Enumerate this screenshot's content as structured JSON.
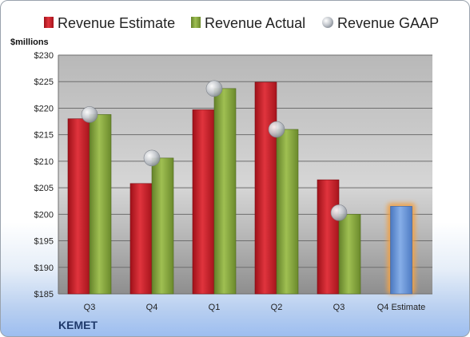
{
  "chart_data": {
    "type": "bar",
    "categories": [
      "Q3",
      "Q4",
      "Q1",
      "Q2",
      "Q3",
      "Q4 Estimate"
    ],
    "series": [
      {
        "name": "Revenue Estimate",
        "values": [
          218.0,
          205.8,
          219.7,
          224.9,
          206.5,
          null
        ]
      },
      {
        "name": "Revenue Actual",
        "values": [
          218.8,
          210.6,
          223.7,
          216.0,
          200.0,
          null
        ]
      },
      {
        "name": "Revenue GAAP",
        "values": [
          218.8,
          210.6,
          223.7,
          216.0,
          200.3,
          null
        ]
      }
    ],
    "forecast": {
      "category": "Q4 Estimate",
      "value": 201.5
    },
    "ylabel": "$millions",
    "ylim": [
      185,
      230
    ],
    "yticks": [
      185,
      190,
      195,
      200,
      205,
      210,
      215,
      220,
      225,
      230
    ],
    "ytick_labels": [
      "$185",
      "$190",
      "$195",
      "$200",
      "$205",
      "$210",
      "$215",
      "$220",
      "$225",
      "$230"
    ],
    "grid": true,
    "legend_position": "top",
    "colors": {
      "estimate": "#c8202a",
      "actual": "#8aaa3c",
      "gaap": "#b9bec6",
      "forecast": "#6a96d8",
      "forecast_glow": "#f0a24a"
    }
  },
  "company": "KEMET"
}
